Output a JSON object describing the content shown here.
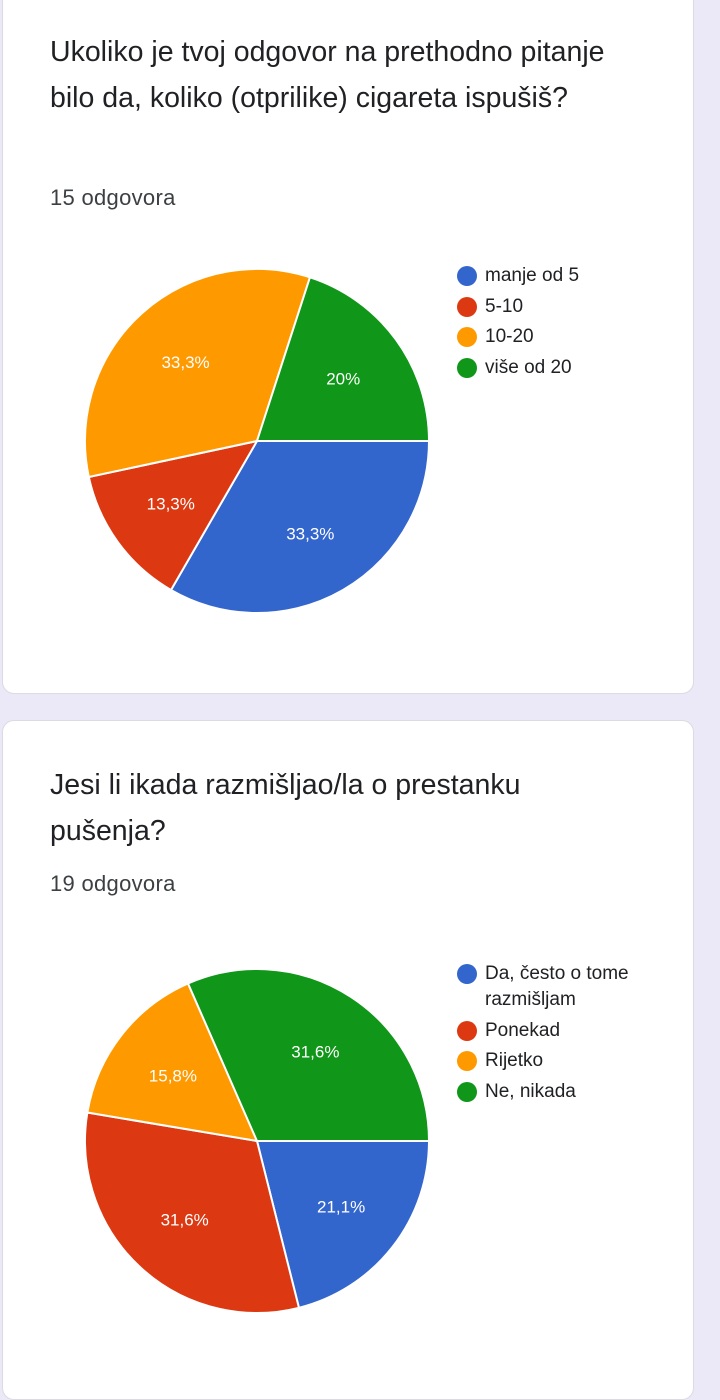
{
  "cards": [
    {
      "question": "Ukoliko je tvoj odgovor na prethodno pitanje bilo da, koliko (otprilike) cigareta ispušiš?",
      "responses": "15 odgovora"
    },
    {
      "question": "Jesi li ikada razmišljao/la o prestanku pušenja?",
      "responses": "19 odgovora"
    }
  ],
  "chart_data": [
    {
      "type": "pie",
      "categories": [
        "manje od 5",
        "5-10",
        "10-20",
        "više od 20"
      ],
      "values": [
        33.3,
        13.3,
        33.3,
        20
      ],
      "labels": [
        "33,3%",
        "13,3%",
        "33,3%",
        "20%"
      ],
      "colors": [
        "#3366cc",
        "#dc3912",
        "#ff9900",
        "#109618"
      ],
      "legend": "right"
    },
    {
      "type": "pie",
      "categories": [
        "Da, često o tome razmišljam",
        "Ponekad",
        "Rijetko",
        "Ne, nikada"
      ],
      "values": [
        21.1,
        31.6,
        15.8,
        31.6
      ],
      "labels": [
        "21,1%",
        "31,6%",
        "15,8%",
        "31,6%"
      ],
      "colors": [
        "#3366cc",
        "#dc3912",
        "#ff9900",
        "#109618"
      ],
      "legend": "right"
    }
  ]
}
